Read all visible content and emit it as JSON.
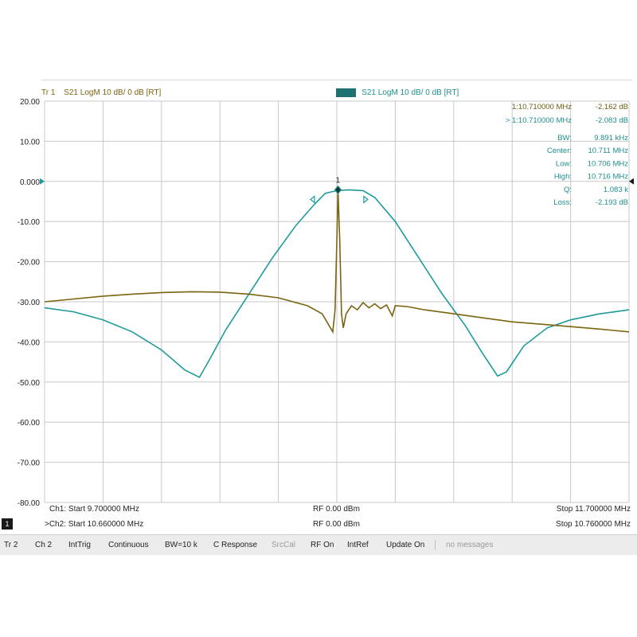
{
  "trace_headers": {
    "tr1": {
      "tag": "Tr 1",
      "text": "S21 LogM 10 dB/ 0 dB [RT]"
    },
    "tr2": {
      "tag": "Tr 2",
      "text": "S21 LogM 10 dB/ 0 dB [RT]"
    }
  },
  "markers": {
    "m1_label": "1:10.710000 MHz",
    "m1_value": "-2.162 dB",
    "m2_label": "> 1:10.710000 MHz",
    "m2_value": "-2.083 dB",
    "stats": [
      {
        "label": "BW:",
        "value": "9.891 kHz"
      },
      {
        "label": "Center:",
        "value": "10.711 MHz"
      },
      {
        "label": "Low:",
        "value": "10.706 MHz"
      },
      {
        "label": "High:",
        "value": "10.716 MHz"
      },
      {
        "label": "Q:",
        "value": "1.083 k"
      },
      {
        "label": "Loss:",
        "value": "-2.193 dB"
      }
    ],
    "marker_flag": "1"
  },
  "y_axis": {
    "ticks": [
      "20.00",
      "10.00",
      "0.000",
      "-10.00",
      "-20.00",
      "-30.00",
      "-40.00",
      "-50.00",
      "-60.00",
      "-70.00",
      "-80.00"
    ],
    "ylim": [
      -80,
      20
    ]
  },
  "channels": {
    "ch1_start": "Ch1: Start 9.700000 MHz",
    "ch1_rf": "RF 0.00 dBm",
    "ch1_stop": "Stop 11.700000 MHz",
    "ch2_start": ">Ch2: Start 10.660000 MHz",
    "ch2_rf": "RF 0.00 dBm",
    "ch2_stop": "Stop 10.760000 MHz",
    "active_badge": "1"
  },
  "softkeys": [
    {
      "label": "Tr 2",
      "dim": false
    },
    {
      "label": "Ch 2",
      "dim": false
    },
    {
      "label": "IntTrig",
      "dim": false
    },
    {
      "label": "Continuous",
      "dim": false
    },
    {
      "label": "BW=10 k",
      "dim": false
    },
    {
      "label": "C Response",
      "dim": false
    },
    {
      "label": "SrcCal",
      "dim": true
    },
    {
      "label": "RF On",
      "dim": false
    },
    {
      "label": "IntRef",
      "dim": false
    },
    {
      "label": "Update On",
      "dim": false
    },
    {
      "label": "no messages",
      "dim": true
    }
  ],
  "colors": {
    "trace1": "#7a6410",
    "trace2": "#1f9a9a",
    "grid": "#c8c8c8"
  }
}
